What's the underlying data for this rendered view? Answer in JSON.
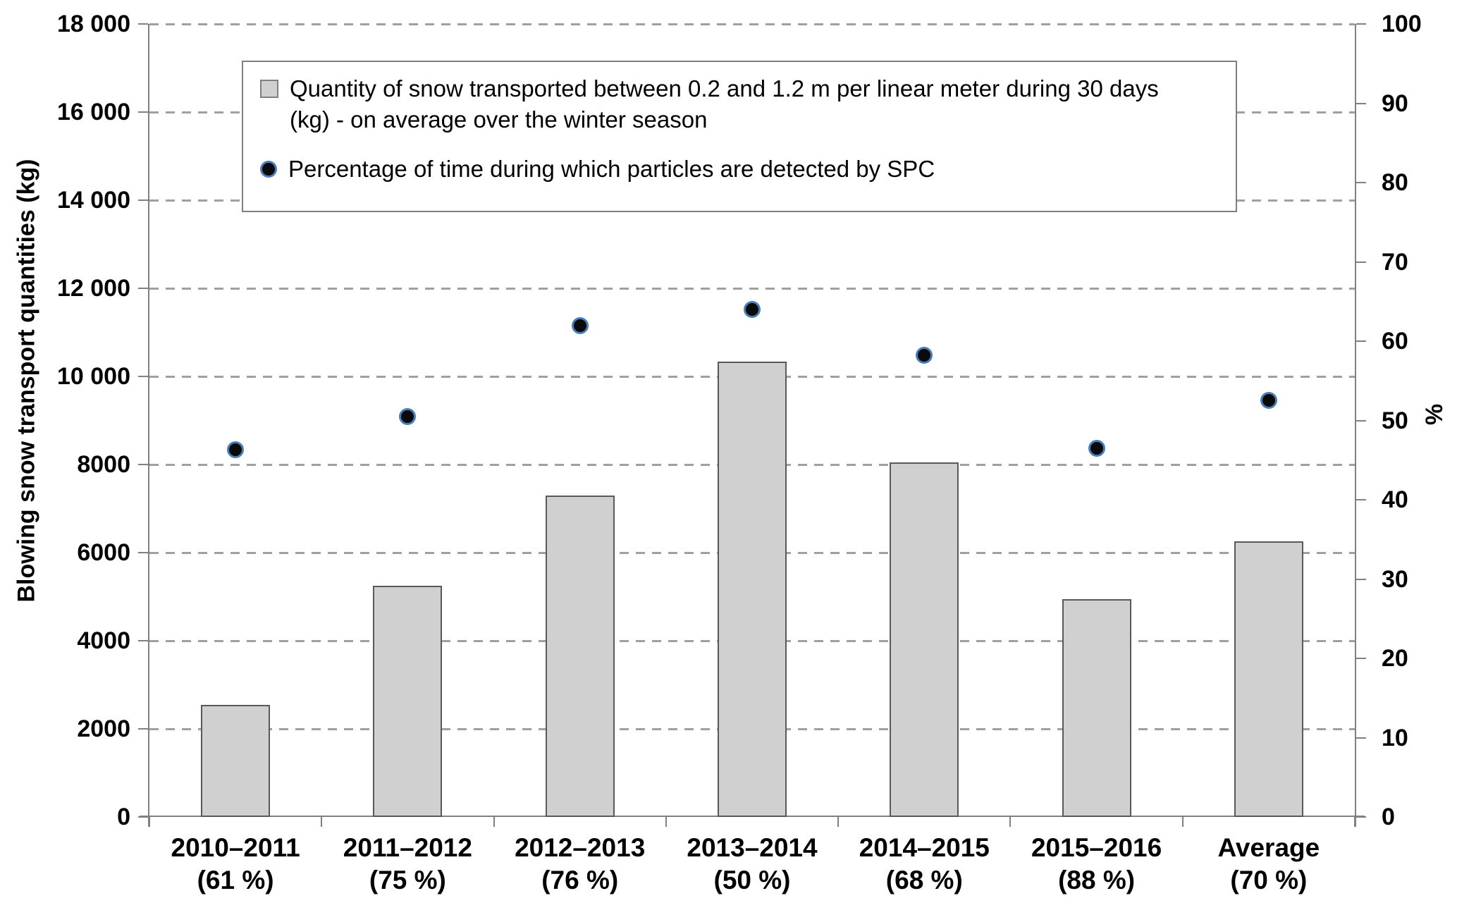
{
  "chart_data": {
    "type": "bar",
    "subtype": "combo-bar-scatter",
    "title": "",
    "categories": [
      "2010–2011",
      "2011–2012",
      "2012–2013",
      "2013–2014",
      "2014–2015",
      "2015–2016",
      "Average"
    ],
    "category_sublabels": [
      "(61 %)",
      "(75 %)",
      "(76 %)",
      "(50 %)",
      "(68 %)",
      "(88 %)",
      "(70 %)"
    ],
    "series": [
      {
        "name": "Quantity of snow transported between 0.2 and 1.2 m per linear meter during 30 days (kg) - on average over the winter season",
        "type": "bar",
        "axis": "left",
        "values": [
          2550,
          5250,
          7300,
          10330,
          8050,
          4950,
          6250
        ]
      },
      {
        "name": "Percentage of time during which particles are detected by SPC",
        "type": "scatter",
        "axis": "right",
        "values": [
          46.3,
          50.5,
          62,
          64,
          58.2,
          46.5,
          52.5
        ]
      }
    ],
    "left_axis": {
      "label": "Blowing snow transport quantities (kg)",
      "min": 0,
      "max": 18000,
      "step": 2000,
      "tick_labels": [
        "0",
        "2000",
        "4000",
        "6000",
        "8000",
        "10 000",
        "12 000",
        "14 000",
        "16 000",
        "18 000"
      ]
    },
    "right_axis": {
      "label": "%",
      "min": 0,
      "max": 100,
      "step": 10,
      "tick_labels": [
        "0",
        "10",
        "20",
        "30",
        "40",
        "50",
        "60",
        "70",
        "80",
        "90",
        "100"
      ]
    },
    "grid": {
      "on": true,
      "style": "dashed",
      "interval": 2000
    },
    "legend": {
      "position": "top-inside"
    }
  },
  "colors": {
    "bar_fill": "#d0d0d0",
    "bar_border": "#595959",
    "dot_fill": "#0a0a0a",
    "dot_ring": "#4a7ebb",
    "gridline": "#a0a0a0",
    "axis_line": "#808080",
    "text": "#000000"
  }
}
